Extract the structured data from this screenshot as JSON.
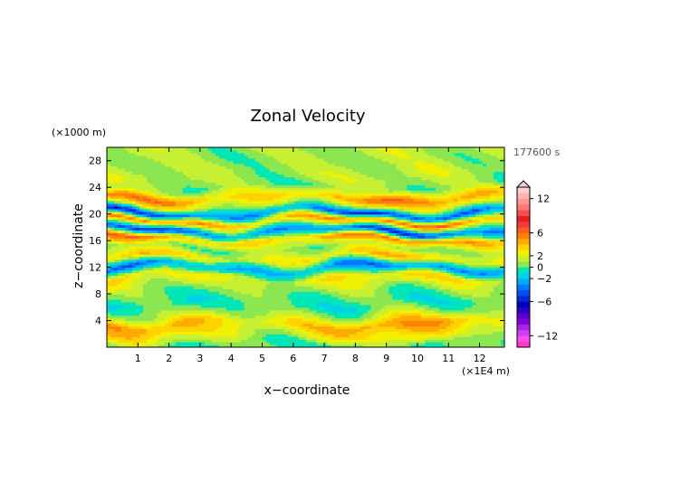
{
  "chart_data": {
    "type": "heatmap",
    "title": "Zonal Velocity",
    "xlabel": "x−coordinate",
    "ylabel": "z−coordinate",
    "x_unit": "(×1E4 m)",
    "y_unit": "(×1000 m)",
    "time_label": "177600 s",
    "xlim": [
      0,
      12.8
    ],
    "ylim": [
      0,
      30
    ],
    "x_ticks": [
      1,
      2,
      3,
      4,
      5,
      6,
      7,
      8,
      9,
      10,
      11,
      12
    ],
    "x_tick_labels": [
      "1",
      "2",
      "3",
      "4",
      "5",
      "6",
      "7",
      "8",
      "9",
      "10",
      "11",
      "12"
    ],
    "y_ticks": [
      4,
      8,
      12,
      16,
      20,
      24,
      28
    ],
    "y_tick_labels": [
      "4",
      "8",
      "12",
      "16",
      "20",
      "24",
      "28"
    ],
    "colorbar": {
      "min": -14,
      "max": 14,
      "levels": [
        -14,
        -13,
        -12,
        -11,
        -10,
        -9,
        -8,
        -7,
        -6,
        -5,
        -4,
        -3,
        -2,
        -1,
        0,
        1,
        2,
        3,
        4,
        5,
        6,
        7,
        8,
        9,
        10,
        11,
        12,
        13,
        14
      ],
      "colors": [
        "#ff3cc8",
        "#ff50e6",
        "#d23cff",
        "#a028e6",
        "#8200dc",
        "#5a00c8",
        "#2800c8",
        "#0000b4",
        "#0028dc",
        "#0050f0",
        "#0078ff",
        "#00aaff",
        "#00d2e6",
        "#00e6b4",
        "#8ce650",
        "#c8f032",
        "#f0f000",
        "#ffd200",
        "#ffaa00",
        "#ff8200",
        "#ff5a28",
        "#f03c3c",
        "#e61e1e",
        "#f05050",
        "#ff7878",
        "#ff9696",
        "#ffb4b4",
        "#ffd2d2"
      ],
      "tick_values": [
        12,
        6,
        2,
        0,
        -2,
        -6,
        -12
      ],
      "tick_labels": [
        "12",
        "6",
        "2",
        "0",
        "−2",
        "−6",
        "−12"
      ]
    },
    "z_bands": [
      {
        "z": 0.5,
        "value": 0.0
      },
      {
        "z": 1.5,
        "value": 1.8
      },
      {
        "z": 3.5,
        "value": 4.0
      },
      {
        "z": 5.0,
        "value": 1.0
      },
      {
        "z": 6.5,
        "value": -0.5
      },
      {
        "z": 8.5,
        "value": 0.5
      },
      {
        "z": 10.5,
        "value": 2.5
      },
      {
        "z": 12.0,
        "value": -3.0
      },
      {
        "z": 13.5,
        "value": 3.0
      },
      {
        "z": 15.0,
        "value": 0.5
      },
      {
        "z": 16.3,
        "value": 4.5
      },
      {
        "z": 17.5,
        "value": -4.0
      },
      {
        "z": 19.0,
        "value": 5.0
      },
      {
        "z": 20.2,
        "value": -4.0
      },
      {
        "z": 21.3,
        "value": 1.5
      },
      {
        "z": 22.5,
        "value": 4.5
      },
      {
        "z": 24.0,
        "value": 0.5
      },
      {
        "z": 26.0,
        "value": 1.2
      },
      {
        "z": 28.0,
        "value": 0.8
      },
      {
        "z": 30.0,
        "value": 1.0
      }
    ]
  }
}
